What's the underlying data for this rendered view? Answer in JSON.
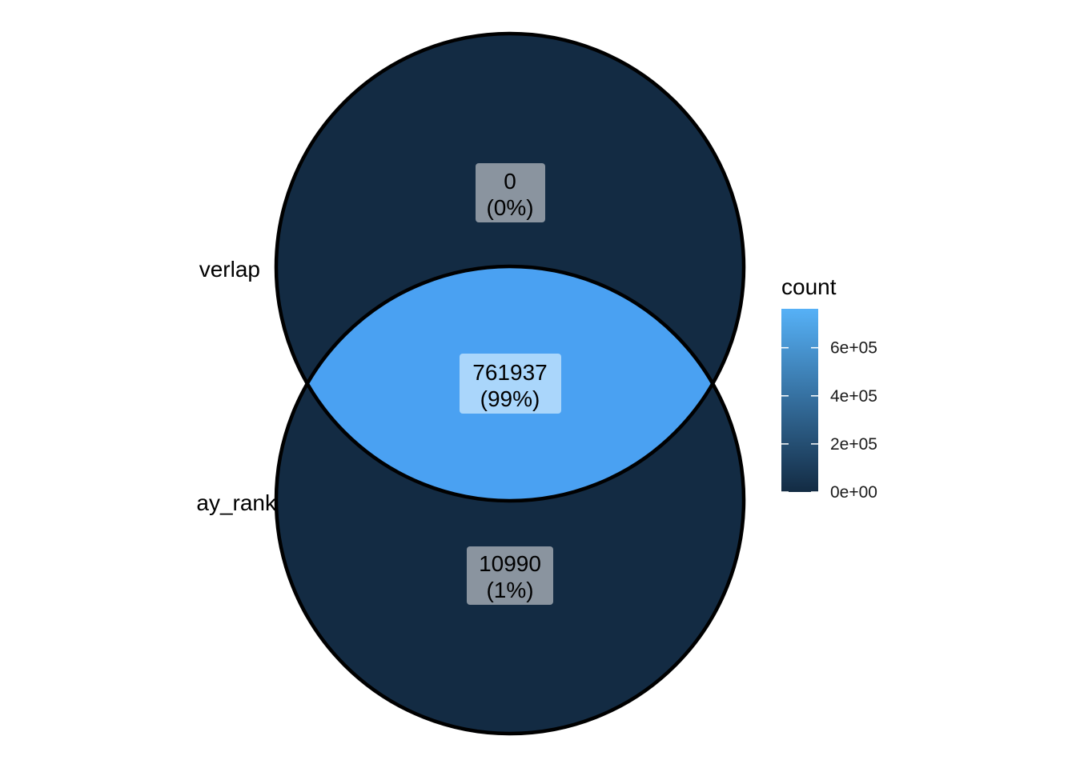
{
  "sets": [
    {
      "id": "top",
      "name": "verlap"
    },
    {
      "id": "bottom",
      "name": "ay_rank"
    }
  ],
  "regions": [
    {
      "id": "top-only",
      "count": "0",
      "percent": "(0%)",
      "value": 0
    },
    {
      "id": "intersection",
      "count": "761937",
      "percent": "(99%)",
      "value": 761937
    },
    {
      "id": "bottom-only",
      "count": "10990",
      "percent": "(1%)",
      "value": 10990
    }
  ],
  "legend": {
    "title": "count",
    "ticks": [
      {
        "label": "0e+00",
        "value": 0
      },
      {
        "label": "2e+05",
        "value": 200000
      },
      {
        "label": "4e+05",
        "value": 400000
      },
      {
        "label": "6e+05",
        "value": 600000
      }
    ],
    "min": 0,
    "max": 761937
  },
  "colors": {
    "low": "#132B43",
    "high": "#56B1F7",
    "outline": "#000000",
    "label_box_dark": "#8a949f",
    "label_box_light": "#aad6fb"
  }
}
